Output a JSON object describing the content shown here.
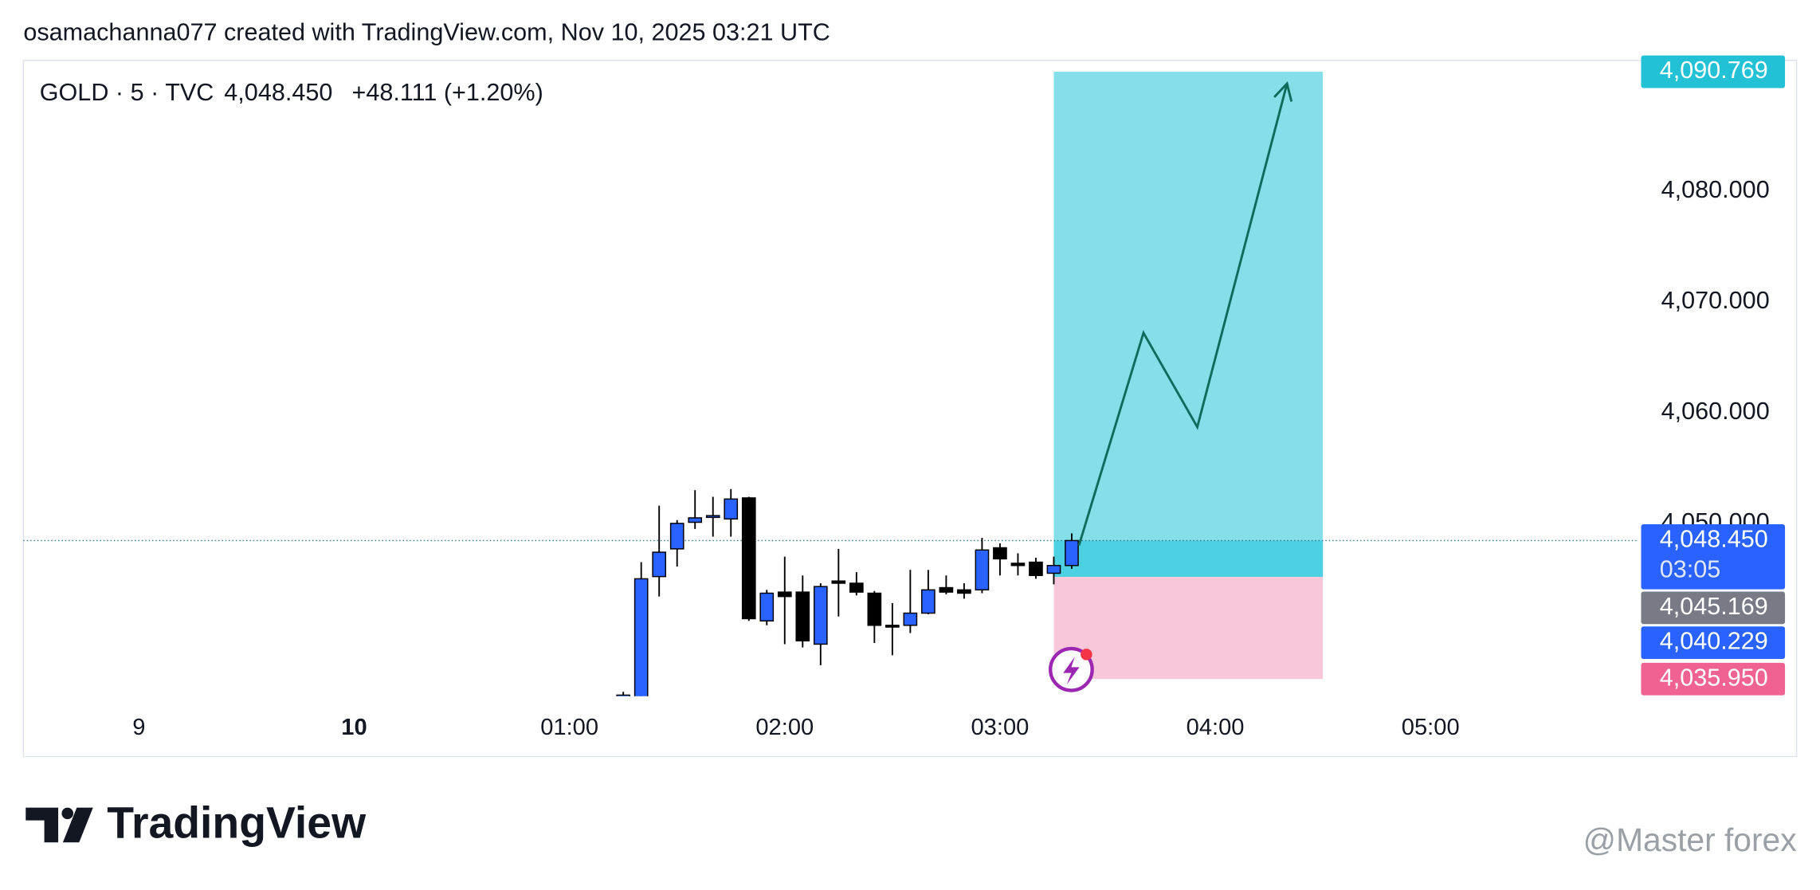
{
  "header": "osamachanna077 created with TradingView.com, Nov 10, 2025 03:21 UTC",
  "chart_data": {
    "type": "candlestick",
    "legend": {
      "symbol": "GOLD · 5 · TVC",
      "last": "4,048.450",
      "change": "+48.111 (+1.20%)"
    },
    "up_color": "#2962ff",
    "down_color": "#000000",
    "x": [
      75,
      80,
      85,
      90,
      95,
      100,
      105,
      110,
      115,
      120,
      125,
      130,
      135,
      140,
      145,
      150,
      155,
      160,
      165,
      170,
      175,
      180,
      185,
      190,
      195,
      200
    ],
    "open": [
      4034.0,
      4034.2,
      4045.2,
      4047.7,
      4050.1,
      4050.6,
      4050.4,
      4052.3,
      4041.2,
      4043.8,
      4043.8,
      4039.1,
      4044.8,
      4044.6,
      4043.7,
      4040.8,
      4040.8,
      4041.9,
      4044.2,
      4044.0,
      4044.0,
      4047.8,
      4046.4,
      4046.5,
      4045.5,
      4046.2
    ],
    "high": [
      4034.8,
      4046.5,
      4051.6,
      4050.3,
      4053.0,
      4052.4,
      4053.1,
      4052.4,
      4044.0,
      4047.0,
      4045.3,
      4044.6,
      4047.7,
      4045.6,
      4043.9,
      4042.8,
      4045.8,
      4045.8,
      4045.3,
      4044.6,
      4048.7,
      4048.2,
      4047.3,
      4046.9,
      4047.0,
      4049.1
    ],
    "low": [
      4033.5,
      4033.5,
      4043.4,
      4046.1,
      4049.5,
      4048.8,
      4048.8,
      4041.2,
      4040.8,
      4039.1,
      4038.8,
      4037.2,
      4041.6,
      4043.5,
      4039.2,
      4038.1,
      4040.1,
      4041.8,
      4043.6,
      4043.2,
      4043.7,
      4045.3,
      4045.3,
      4045.0,
      4044.5,
      4045.9
    ],
    "close": [
      4034.5,
      4045.0,
      4047.4,
      4050.0,
      4050.5,
      4050.7,
      4052.2,
      4041.4,
      4043.7,
      4043.4,
      4039.4,
      4044.3,
      4044.6,
      4043.8,
      4040.8,
      4040.7,
      4041.9,
      4044.0,
      4043.8,
      4043.7,
      4047.6,
      4046.8,
      4046.2,
      4045.3,
      4046.2,
      4048.45
    ],
    "xlim": [
      -92.2,
      357.4
    ],
    "xticks": [
      {
        "value": -60,
        "label": "9"
      },
      {
        "value": 0,
        "label": "10"
      },
      {
        "value": 60,
        "label": "01:00"
      },
      {
        "value": 120,
        "label": "02:00"
      },
      {
        "value": 180,
        "label": "03:00"
      },
      {
        "value": 240,
        "label": "04:00"
      },
      {
        "value": 300,
        "label": "05:00"
      }
    ],
    "ylim": [
      4034.4,
      4091.8
    ],
    "yticks": [
      {
        "value": 4050,
        "label": "4,050.000"
      },
      {
        "value": 4060,
        "label": "4,060.000"
      },
      {
        "value": 4070,
        "label": "4,070.000"
      },
      {
        "value": 4080,
        "label": "4,080.000"
      }
    ],
    "position": {
      "xlim": [
        195,
        270
      ],
      "target": 4090.769,
      "entry": 4045.169,
      "stop": 4035.95,
      "target_color": "#84dfe9",
      "open_color": "#4dd0e1",
      "stop_color": "#f8c8da"
    },
    "projection": {
      "x": [
        202,
        220,
        235,
        260
      ],
      "values": [
        4048.0,
        4067.2,
        4058.7,
        4089.7
      ],
      "color": "#0f6b5e"
    },
    "price_labels": [
      {
        "value": 4090.769,
        "label": "4,090.769",
        "color": "#22c1d6"
      },
      {
        "value": 4048.45,
        "label": "4,048.450",
        "countdown": "03:05",
        "color": "#2962ff"
      },
      {
        "value": 4045.169,
        "label": "4,045.169",
        "color": "#787b86"
      },
      {
        "value": 4040.229,
        "label": "4,040.229",
        "color": "#2962ff"
      },
      {
        "value": 4035.95,
        "label": "4,035.950",
        "color": "#f06292"
      }
    ]
  },
  "logo": "TradingView",
  "watermark": "@Master forex"
}
